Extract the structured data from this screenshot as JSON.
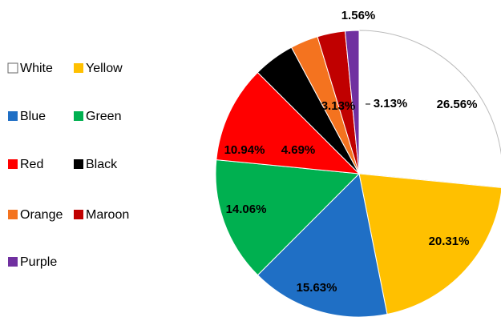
{
  "chart_data": {
    "type": "pie",
    "categories": [
      "White",
      "Yellow",
      "Blue",
      "Green",
      "Red",
      "Black",
      "Orange",
      "Maroon",
      "Purple"
    ],
    "values": [
      26.56,
      20.31,
      15.63,
      14.06,
      10.94,
      4.69,
      3.13,
      3.13,
      1.56
    ],
    "value_labels": [
      "26.56%",
      "20.31%",
      "15.63%",
      "14.06%",
      "10.94%",
      "4.69%",
      "3.13%",
      "3.13%",
      "1.56%"
    ],
    "colors": [
      "#ffffff",
      "#ffc000",
      "#1f6fc5",
      "#00b050",
      "#ff0000",
      "#000000",
      "#f4731f",
      "#c00000",
      "#7030a0"
    ],
    "legend": "left"
  }
}
